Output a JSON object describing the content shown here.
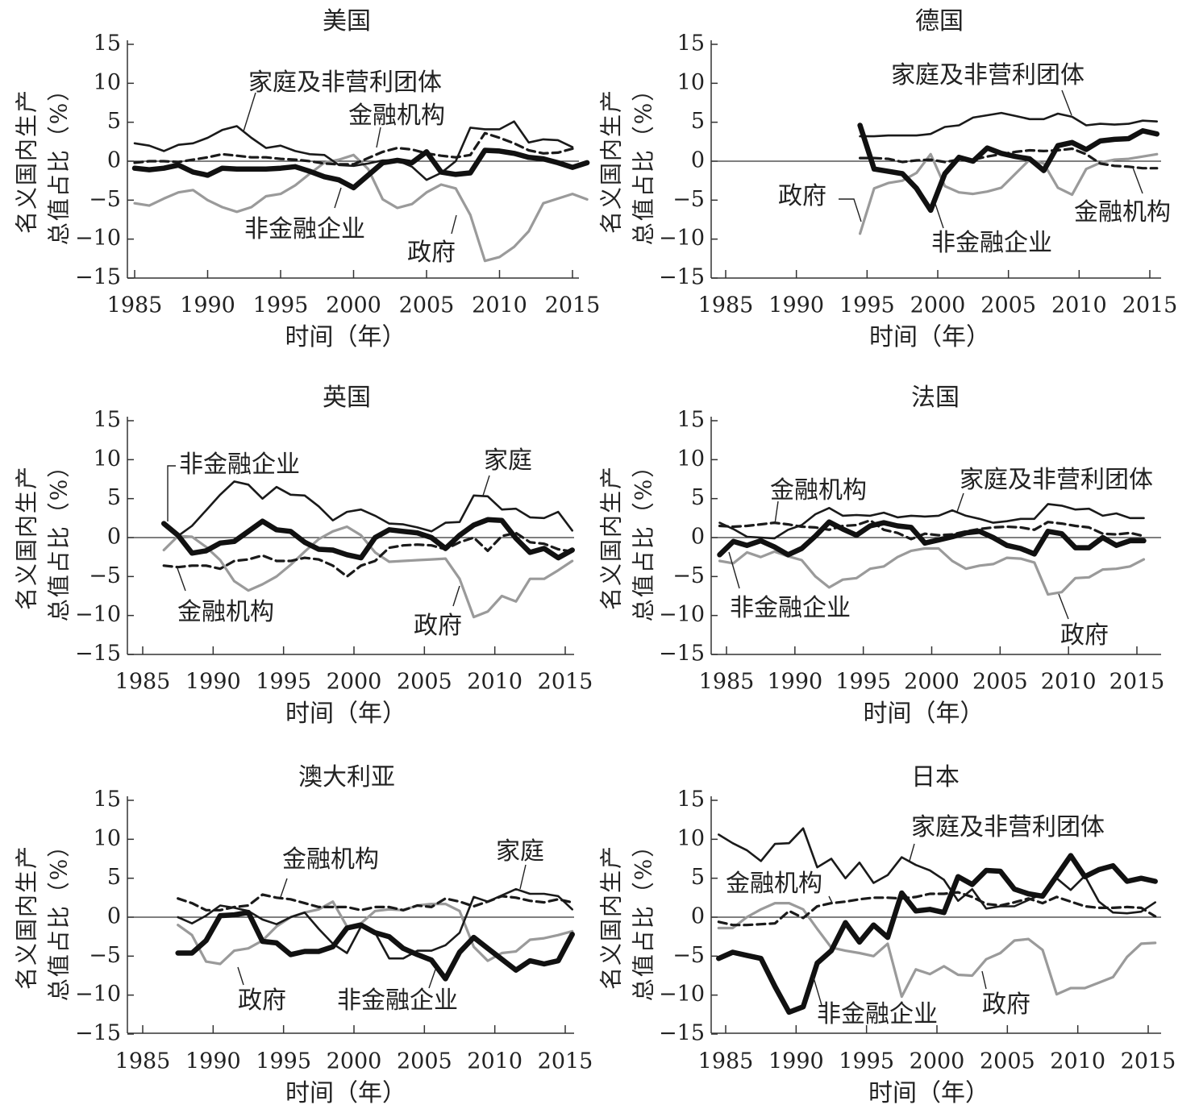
{
  "chart_data": [
    {
      "type": "line",
      "title": "美国",
      "xlabel": "时间（年）",
      "ylabel_lines": [
        "名义国内生产",
        "总值占比（%）"
      ],
      "ylim": [
        -15,
        15
      ],
      "xlim": [
        1985,
        2015
      ],
      "yticks": [
        15,
        10,
        5,
        0,
        -5,
        -10,
        -15
      ],
      "ytick_labels": [
        "15",
        "10",
        "5",
        "0",
        "−5",
        "−10",
        "−15"
      ],
      "xticks": [
        1985,
        1990,
        1995,
        2000,
        2005,
        2010,
        2015
      ],
      "xtick_labels": [
        "1985",
        "1990",
        "1995",
        "2000",
        "2005",
        "2010",
        "2015"
      ],
      "series": [
        {
          "name": "家庭及非营利团体",
          "x_start": 1985,
          "values": [
            2.3,
            2.0,
            1.3,
            2.1,
            2.3,
            3.0,
            4.0,
            4.5,
            3.0,
            1.7,
            2.0,
            1.3,
            0.9,
            0.8,
            -0.5,
            -0.6,
            -0.3,
            0.1,
            0.1,
            -0.7,
            -2.4,
            -1.5,
            0.0,
            4.3,
            4.1,
            4.1,
            5.1,
            2.4,
            2.8,
            2.7,
            1.8
          ]
        },
        {
          "name": "金融机构",
          "x_start": 1985,
          "values": [
            -0.2,
            0.0,
            0.0,
            -0.1,
            0.2,
            0.5,
            0.9,
            0.7,
            0.5,
            0.5,
            0.3,
            0.2,
            0.0,
            -0.3,
            -0.4,
            -0.4,
            0.4,
            1.2,
            1.7,
            1.5,
            1.0,
            0.7,
            0.5,
            0.8,
            3.6,
            3.0,
            2.3,
            1.4,
            1.0,
            1.1,
            1.6
          ]
        },
        {
          "name": "非金融企业",
          "x_start": 1985,
          "values": [
            -0.9,
            -1.1,
            -0.9,
            -0.5,
            -1.4,
            -1.8,
            -0.9,
            -1.0,
            -1.0,
            -1.0,
            -0.9,
            -0.7,
            -1.3,
            -2.0,
            -2.4,
            -3.4,
            -1.8,
            -0.2,
            0.1,
            -0.2,
            1.2,
            -1.4,
            -1.7,
            -1.5,
            1.4,
            1.3,
            1.0,
            0.5,
            0.3,
            -0.2,
            -0.8,
            -0.2
          ]
        },
        {
          "name": "政府",
          "x_start": 1985,
          "values": [
            -5.4,
            -5.7,
            -4.8,
            -4.0,
            -3.7,
            -5.0,
            -5.9,
            -6.5,
            -5.9,
            -4.5,
            -4.2,
            -3.1,
            -1.6,
            -0.2,
            0.2,
            0.8,
            -1.0,
            -4.9,
            -6.0,
            -5.5,
            -4.0,
            -3.0,
            -3.5,
            -6.9,
            -12.8,
            -12.3,
            -11.0,
            -9.0,
            -5.4,
            -4.8,
            -4.2,
            -4.9
          ]
        }
      ]
    },
    {
      "type": "line",
      "title": "德国",
      "xlabel": "时间（年）",
      "ylabel_lines": [
        "名义国内生产",
        "总值占比（%）"
      ],
      "ylim": [
        -15,
        15
      ],
      "xlim": [
        1985,
        2015
      ],
      "yticks": [
        15,
        10,
        5,
        0,
        -5,
        -10,
        -15
      ],
      "ytick_labels": [
        "15",
        "10",
        "5",
        "0",
        "−5",
        "−10",
        "−15"
      ],
      "xticks": [
        1985,
        1990,
        1995,
        2000,
        2005,
        2010,
        2015
      ],
      "xtick_labels": [
        "1985",
        "1990",
        "1995",
        "2000",
        "2005",
        "2010",
        "2015"
      ],
      "series": [
        {
          "name": "家庭及非营利团体",
          "x_start": 1994.5,
          "values": [
            3.2,
            3.2,
            3.3,
            3.3,
            3.3,
            3.5,
            4.4,
            4.6,
            5.6,
            5.9,
            6.2,
            5.8,
            5.4,
            5.4,
            6.1,
            5.7,
            4.6,
            4.8,
            4.7,
            4.8,
            5.2,
            5.1
          ]
        },
        {
          "name": "金融机构",
          "x_start": 1994.5,
          "values": [
            0.4,
            0.4,
            0.3,
            -0.1,
            0.1,
            0.2,
            -0.1,
            0.2,
            0.2,
            0.6,
            0.9,
            1.2,
            1.4,
            1.3,
            1.4,
            1.6,
            0.9,
            -0.3,
            -0.6,
            -0.7,
            -0.9,
            -0.9
          ]
        },
        {
          "name": "非金融企业",
          "x_start": 1994.5,
          "values": [
            4.6,
            -1.0,
            -1.3,
            -1.6,
            -3.5,
            -6.3,
            -1.6,
            0.5,
            0.0,
            1.7,
            1.0,
            0.6,
            0.3,
            -1.2,
            2.0,
            2.4,
            1.5,
            2.6,
            2.8,
            2.9,
            3.9,
            3.5
          ]
        },
        {
          "name": "政府",
          "x_start": 1994.5,
          "values": [
            -9.3,
            -3.5,
            -2.8,
            -2.5,
            -1.5,
            0.9,
            -3.2,
            -4.0,
            -4.2,
            -3.9,
            -3.4,
            -1.6,
            0.2,
            -0.3,
            -3.4,
            -4.3,
            -1.0,
            -0.2,
            0.2,
            0.3,
            0.6,
            0.9
          ]
        }
      ]
    },
    {
      "type": "line",
      "title": "英国",
      "xlabel": "时间（年）",
      "ylabel_lines": [
        "名义国内生产",
        "总值占比（%）"
      ],
      "ylim": [
        -15,
        15
      ],
      "xlim": [
        1985,
        2015
      ],
      "yticks": [
        15,
        10,
        5,
        0,
        -5,
        -10,
        -15
      ],
      "ytick_labels": [
        "15",
        "10",
        "5",
        "0",
        "−5",
        "−10",
        "−15"
      ],
      "xticks": [
        1985,
        1990,
        1995,
        2000,
        2005,
        2010,
        2015
      ],
      "xtick_labels": [
        "1985",
        "1990",
        "1995",
        "2000",
        "2005",
        "2010",
        "2015"
      ],
      "series": [
        {
          "name": "家庭",
          "x_start": 1987.5,
          "values": [
            0.2,
            1.5,
            3.5,
            5.5,
            7.2,
            6.8,
            5.0,
            6.5,
            5.5,
            5.4,
            4.0,
            2.2,
            3.3,
            3.6,
            2.8,
            1.8,
            1.7,
            1.3,
            0.8,
            1.9,
            2.0,
            5.4,
            5.3,
            3.6,
            3.7,
            2.6,
            2.5,
            3.3,
            0.9
          ]
        },
        {
          "name": "金融机构",
          "x_start": 1986.5,
          "values": [
            -3.6,
            -3.8,
            -3.6,
            -3.6,
            -4.0,
            -3.0,
            -2.8,
            -2.3,
            -3.0,
            -3.0,
            -2.6,
            -2.8,
            -3.6,
            -5.0,
            -3.6,
            -3.0,
            -1.3,
            -1.0,
            -0.9,
            -1.0,
            -1.5,
            -0.6,
            0.0,
            -1.7,
            0.2,
            0.6,
            -0.6,
            -0.8,
            -1.5,
            -1.8
          ]
        },
        {
          "name": "非金融企业",
          "x_start": 1986.5,
          "values": [
            1.8,
            0.3,
            -2.0,
            -1.7,
            -0.7,
            -0.5,
            0.8,
            2.1,
            1.0,
            0.8,
            -0.6,
            -1.5,
            -1.6,
            -2.2,
            -2.6,
            0.0,
            1.0,
            0.8,
            0.6,
            0.0,
            -1.4,
            0.3,
            1.6,
            2.3,
            2.2,
            -0.1,
            -1.9,
            -1.4,
            -2.6,
            -1.6
          ]
        },
        {
          "name": "政府",
          "x_start": 1986.5,
          "values": [
            -1.6,
            0.2,
            0.1,
            -1.2,
            -2.9,
            -5.6,
            -6.8,
            -6.0,
            -5.0,
            -3.5,
            -1.8,
            -0.2,
            0.8,
            1.4,
            0.3,
            -1.9,
            -3.1,
            -3.0,
            -2.9,
            -2.8,
            -2.7,
            -5.3,
            -10.2,
            -9.5,
            -7.5,
            -8.2,
            -5.3,
            -5.3,
            -4.2,
            -3.0
          ]
        }
      ]
    },
    {
      "type": "line",
      "title": "法国",
      "xlabel": "时间（年）",
      "ylabel_lines": [
        "名义国内生产",
        "总值占比（%）"
      ],
      "ylim": [
        -15,
        15
      ],
      "xlim": [
        1985,
        2015
      ],
      "yticks": [
        15,
        10,
        5,
        0,
        -5,
        -10,
        -15
      ],
      "ytick_labels": [
        "15",
        "10",
        "5",
        "0",
        "−5",
        "−10",
        "−15"
      ],
      "xticks": [
        1985,
        1990,
        1995,
        2000,
        2005,
        2010,
        2015
      ],
      "xtick_labels": [
        "1985",
        "1990",
        "1995",
        "2000",
        "2005",
        "2010",
        "2015"
      ],
      "series": [
        {
          "name": "家庭及非营利团体",
          "x_start": 1984.5,
          "values": [
            1.9,
            1.1,
            0.1,
            0.0,
            -0.1,
            1.0,
            1.6,
            3.0,
            3.8,
            2.8,
            2.9,
            2.8,
            3.2,
            2.6,
            2.8,
            2.7,
            2.8,
            3.5,
            2.8,
            2.4,
            1.9,
            2.1,
            2.4,
            2.4,
            4.3,
            4.1,
            3.6,
            3.7,
            2.8,
            3.1,
            2.5,
            2.5
          ]
        },
        {
          "name": "金融机构",
          "x_start": 1984.5,
          "values": [
            1.5,
            1.4,
            1.5,
            1.7,
            1.9,
            1.7,
            1.4,
            1.3,
            1.0,
            1.5,
            1.6,
            2.2,
            1.0,
            0.6,
            -0.2,
            0.5,
            0.3,
            0.4,
            0.8,
            1.1,
            1.3,
            1.4,
            1.3,
            1.0,
            2.0,
            1.8,
            1.5,
            1.3,
            0.5,
            0.4,
            0.6,
            0.2
          ]
        },
        {
          "name": "非金融企业",
          "x_start": 1984.5,
          "values": [
            -2.2,
            -0.5,
            -1.0,
            -0.4,
            -1.2,
            -2.2,
            -1.4,
            0.2,
            2.0,
            1.1,
            0.3,
            1.5,
            1.9,
            1.5,
            1.3,
            -0.7,
            -0.3,
            0.1,
            0.6,
            0.8,
            0.0,
            -1.0,
            -1.4,
            -2.1,
            0.8,
            0.5,
            -1.3,
            -1.3,
            0.0,
            -1.0,
            -0.4,
            -0.4
          ]
        },
        {
          "name": "政府",
          "x_start": 1984.5,
          "values": [
            -3.0,
            -3.3,
            -1.9,
            -2.5,
            -1.8,
            -2.4,
            -2.9,
            -5.0,
            -6.4,
            -5.4,
            -5.2,
            -4.0,
            -3.7,
            -2.5,
            -1.7,
            -1.4,
            -1.4,
            -3.0,
            -4.0,
            -3.6,
            -3.4,
            -2.6,
            -2.7,
            -3.2,
            -7.3,
            -7.0,
            -5.2,
            -5.1,
            -4.1,
            -4.0,
            -3.7,
            -2.8
          ]
        }
      ]
    },
    {
      "type": "line",
      "title": "澳大利亚",
      "xlabel": "时间（年）",
      "ylabel_lines": [
        "名义国内生产",
        "总值占比（%）"
      ],
      "ylim": [
        -15,
        15
      ],
      "xlim": [
        1985,
        2015
      ],
      "yticks": [
        15,
        10,
        5,
        0,
        -5,
        -10,
        -15
      ],
      "ytick_labels": [
        "15",
        "10",
        "5",
        "0",
        "−5",
        "−10",
        "−15"
      ],
      "xticks": [
        1985,
        1990,
        1995,
        2000,
        2005,
        2010,
        2015
      ],
      "xtick_labels": [
        "1985",
        "1990",
        "1995",
        "2000",
        "2005",
        "2010",
        "2015"
      ],
      "series": [
        {
          "name": "家庭",
          "x_start": 1987.5,
          "values": [
            0.0,
            -0.8,
            0.2,
            1.5,
            1.2,
            0.8,
            -0.3,
            -0.9,
            0.0,
            0.6,
            -1.5,
            -3.4,
            -4.6,
            -1.2,
            -2.0,
            -5.3,
            -5.3,
            -4.3,
            -4.3,
            -3.6,
            -2.0,
            2.6,
            2.0,
            2.8,
            3.6,
            3.0,
            3.0,
            2.7,
            1.0
          ]
        },
        {
          "name": "金融机构",
          "x_start": 1987.5,
          "values": [
            2.4,
            1.8,
            0.9,
            0.9,
            1.3,
            1.5,
            2.9,
            2.5,
            2.3,
            1.8,
            1.3,
            1.3,
            1.3,
            0.9,
            1.3,
            1.3,
            0.9,
            1.5,
            1.3,
            2.4,
            2.0,
            1.4,
            2.0,
            2.7,
            2.5,
            2.1,
            1.9,
            2.3,
            1.9
          ]
        },
        {
          "name": "非金融企业",
          "x_start": 1987.5,
          "values": [
            -4.6,
            -4.6,
            -3.0,
            0.2,
            0.3,
            0.6,
            -3.1,
            -3.3,
            -4.8,
            -4.4,
            -4.4,
            -3.8,
            -1.4,
            -1.0,
            -2.0,
            -2.5,
            -4.0,
            -4.8,
            -5.5,
            -7.9,
            -4.5,
            -2.6,
            -4.0,
            -5.4,
            -6.8,
            -5.6,
            -6.0,
            -5.6,
            -2.2
          ]
        },
        {
          "name": "政府",
          "x_start": 1987.5,
          "values": [
            -1.0,
            -2.3,
            -5.7,
            -6.0,
            -4.3,
            -4.0,
            -3.0,
            -1.2,
            0.0,
            0.6,
            1.0,
            2.0,
            -1.2,
            -0.8,
            0.8,
            1.0,
            0.9,
            1.5,
            1.7,
            1.7,
            0.8,
            -3.8,
            -5.6,
            -4.6,
            -4.4,
            -2.9,
            -2.7,
            -2.3,
            -1.8
          ]
        }
      ]
    },
    {
      "type": "line",
      "title": "日本",
      "xlabel": "时间（年）",
      "ylabel_lines": [
        "名义国内生产",
        "总值占比（%）"
      ],
      "ylim": [
        -15,
        15
      ],
      "xlim": [
        1985,
        2015
      ],
      "yticks": [
        15,
        10,
        5,
        0,
        -5,
        -10,
        -15
      ],
      "ytick_labels": [
        "15",
        "10",
        "5",
        "0",
        "−5",
        "−10",
        "−15"
      ],
      "xticks": [
        1985,
        1990,
        1995,
        2000,
        2005,
        2010,
        2015
      ],
      "xtick_labels": [
        "1985",
        "1990",
        "1995",
        "2000",
        "2005",
        "2010",
        "2015"
      ],
      "series": [
        {
          "name": "家庭及非营利团体",
          "x_start": 1984.5,
          "values": [
            10.6,
            9.5,
            8.6,
            7.2,
            9.4,
            9.5,
            11.4,
            6.4,
            7.5,
            5.0,
            7.0,
            4.4,
            5.4,
            7.7,
            6.7,
            6.0,
            4.8,
            2.1,
            3.6,
            1.1,
            1.4,
            1.4,
            2.2,
            3.0,
            5.0,
            3.5,
            5.3,
            2.0,
            0.6,
            0.5,
            0.7,
            1.9
          ]
        },
        {
          "name": "金融机构",
          "x_start": 1984.5,
          "values": [
            -0.6,
            -1.0,
            -1.0,
            -0.9,
            -0.8,
            0.8,
            -0.1,
            1.4,
            1.8,
            2.0,
            2.3,
            2.5,
            2.5,
            2.4,
            2.6,
            3.0,
            3.0,
            3.2,
            2.6,
            1.7,
            1.5,
            1.9,
            2.4,
            1.8,
            2.6,
            2.0,
            1.4,
            1.2,
            1.2,
            1.3,
            1.2,
            0.1
          ]
        },
        {
          "name": "非金融企业",
          "x_start": 1984.5,
          "values": [
            -5.3,
            -4.5,
            -4.9,
            -5.3,
            -8.9,
            -12.2,
            -11.5,
            -5.9,
            -4.3,
            -0.7,
            -3.2,
            -1.0,
            -2.6,
            3.1,
            0.8,
            1.0,
            0.6,
            5.2,
            4.2,
            6.0,
            5.9,
            3.6,
            3.0,
            2.7,
            5.3,
            7.9,
            5.2,
            6.1,
            6.6,
            4.6,
            5.0,
            4.6
          ]
        },
        {
          "name": "政府",
          "x_start": 1984.5,
          "values": [
            -1.4,
            -1.4,
            0.0,
            1.0,
            1.8,
            1.8,
            1.0,
            -1.5,
            -3.9,
            -4.3,
            -4.6,
            -5.0,
            -3.4,
            -10.2,
            -6.7,
            -7.3,
            -6.3,
            -7.4,
            -7.5,
            -5.4,
            -4.6,
            -3.0,
            -2.8,
            -4.2,
            -9.9,
            -9.1,
            -9.1,
            -8.4,
            -7.7,
            -5.1,
            -3.4,
            -3.3
          ]
        }
      ]
    }
  ]
}
